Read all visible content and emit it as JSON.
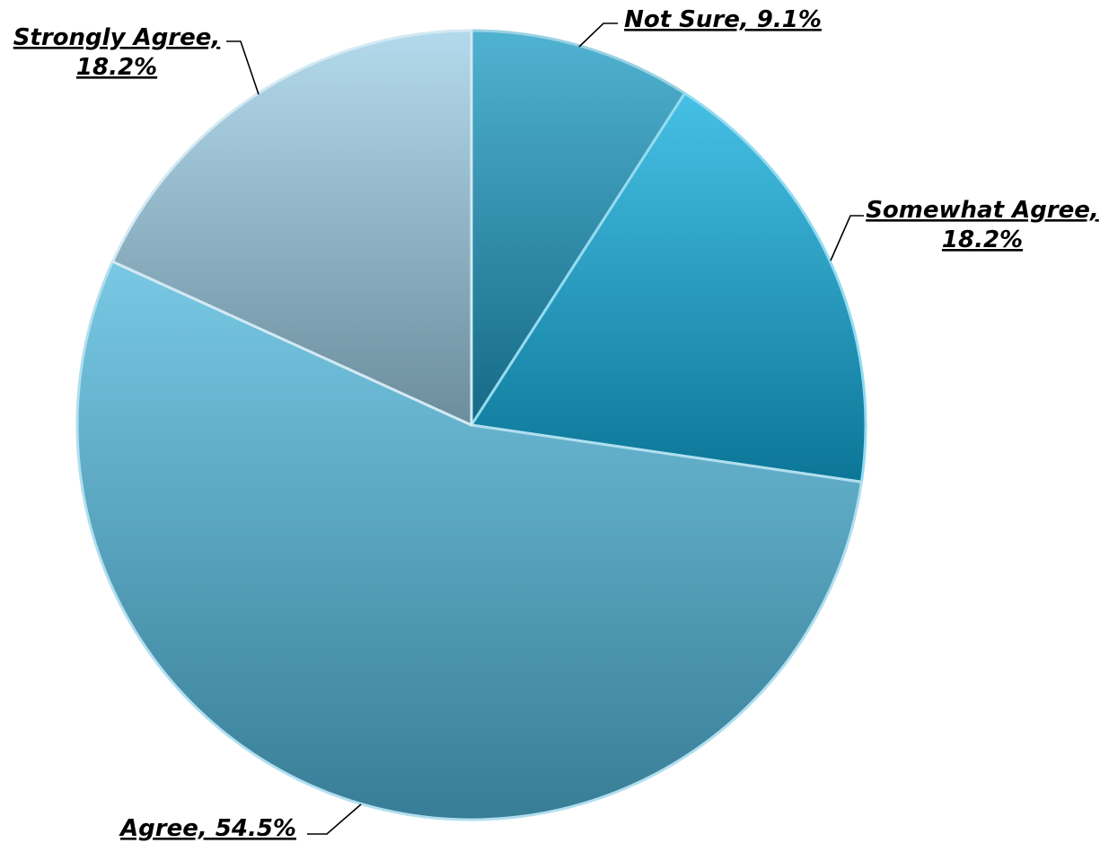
{
  "chart_data": {
    "type": "pie",
    "title": "",
    "slices": [
      {
        "label": "Not Sure",
        "value": 9.1,
        "display": "9.1%",
        "color": "#1f9cc4"
      },
      {
        "label": "Somewhat Agree",
        "value": 18.2,
        "display": "18.2%",
        "color": "#12aede"
      },
      {
        "label": "Agree",
        "value": 54.5,
        "display": "54.5%",
        "color": "#52b8dc"
      },
      {
        "label": "Strongly Agree",
        "value": 18.2,
        "display": "18.2%",
        "color": "#9dcfe6"
      }
    ],
    "label_style": "bold-italic-underlined",
    "start_angle_deg": 0,
    "direction": "clockwise"
  }
}
